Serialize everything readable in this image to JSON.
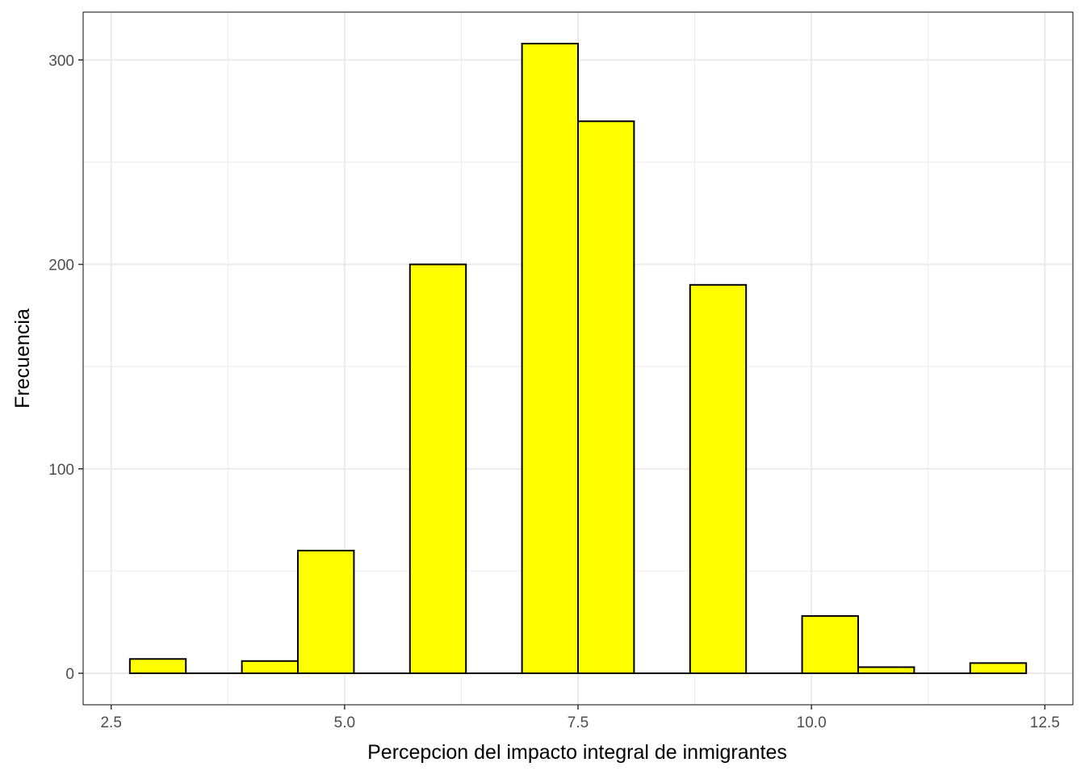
{
  "chart_data": {
    "type": "bar",
    "title": "",
    "xlabel": "Percepcion del impacto integral de inmigrantes",
    "ylabel": "Frecuencia",
    "binwidth": 0.6,
    "bins": [
      {
        "x_start": 2.7,
        "x_end": 3.3,
        "count": 7
      },
      {
        "x_start": 3.3,
        "x_end": 3.9,
        "count": 0
      },
      {
        "x_start": 3.9,
        "x_end": 4.5,
        "count": 6
      },
      {
        "x_start": 4.5,
        "x_end": 5.1,
        "count": 60
      },
      {
        "x_start": 5.1,
        "x_end": 5.7,
        "count": 0
      },
      {
        "x_start": 5.7,
        "x_end": 6.3,
        "count": 200
      },
      {
        "x_start": 6.3,
        "x_end": 6.9,
        "count": 0
      },
      {
        "x_start": 6.9,
        "x_end": 7.5,
        "count": 308
      },
      {
        "x_start": 7.5,
        "x_end": 8.1,
        "count": 270
      },
      {
        "x_start": 8.1,
        "x_end": 8.7,
        "count": 0
      },
      {
        "x_start": 8.7,
        "x_end": 9.3,
        "count": 190
      },
      {
        "x_start": 9.3,
        "x_end": 9.9,
        "count": 0
      },
      {
        "x_start": 9.9,
        "x_end": 10.5,
        "count": 28
      },
      {
        "x_start": 10.5,
        "x_end": 11.1,
        "count": 3
      },
      {
        "x_start": 11.1,
        "x_end": 11.7,
        "count": 0
      },
      {
        "x_start": 11.7,
        "x_end": 12.3,
        "count": 5
      }
    ],
    "xlim": [
      2.2,
      12.8
    ],
    "ylim": [
      -15.4,
      323.4
    ],
    "x_ticks": [
      {
        "value": 2.5,
        "label": "2.5"
      },
      {
        "value": 5.0,
        "label": "5.0"
      },
      {
        "value": 7.5,
        "label": "7.5"
      },
      {
        "value": 10.0,
        "label": "10.0"
      },
      {
        "value": 12.5,
        "label": "12.5"
      }
    ],
    "y_ticks": [
      {
        "value": 0,
        "label": "0"
      },
      {
        "value": 100,
        "label": "100"
      },
      {
        "value": 200,
        "label": "200"
      },
      {
        "value": 300,
        "label": "300"
      }
    ],
    "grid": true,
    "legend": "none",
    "bar_fill": "#ffff00",
    "bar_outline": "#000000",
    "grid_color": "#ebebeb",
    "panel_border_color": "#333333"
  }
}
